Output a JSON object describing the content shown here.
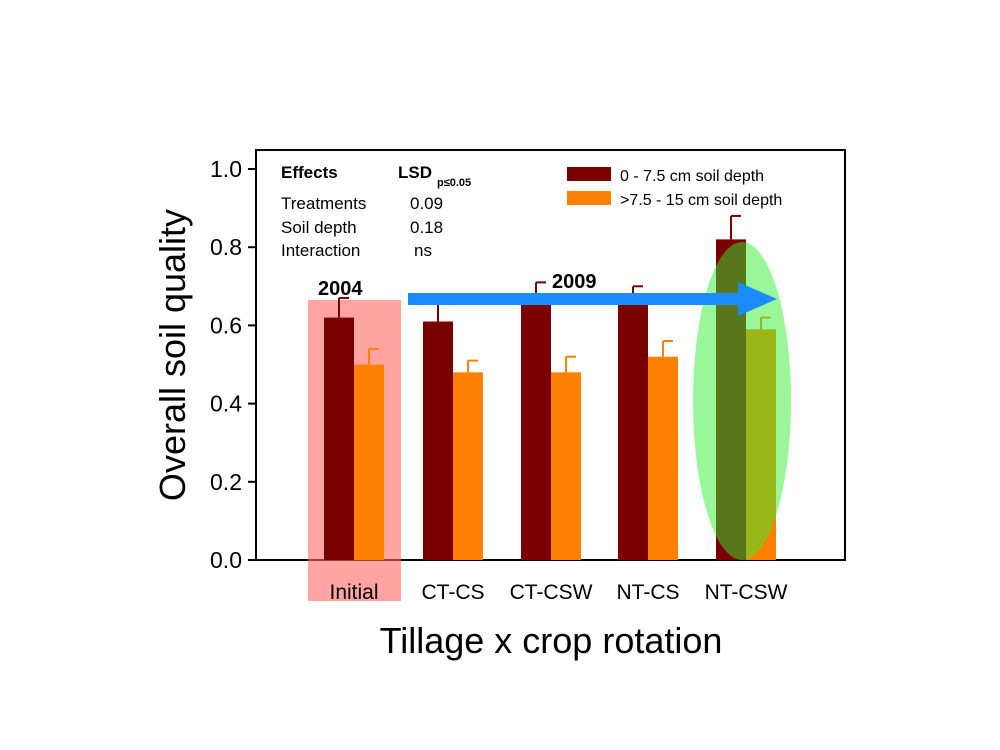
{
  "chart_data": {
    "type": "bar",
    "xlabel": "Tillage x crop rotation",
    "ylabel": "Overall soil quality",
    "ylim": [
      0,
      1.05
    ],
    "yticks": [
      "0.0",
      "0.2",
      "0.4",
      "0.6",
      "0.8",
      "1.0"
    ],
    "categories": [
      "Initial",
      "CT-CS",
      "CT-CSW",
      "NT-CS",
      "NT-CSW"
    ],
    "series": [
      {
        "name": "0 - 7.5 cm soil depth",
        "color": "#7a0000",
        "values": [
          0.62,
          0.61,
          0.66,
          0.66,
          0.82
        ],
        "errors": [
          0.05,
          0.05,
          0.05,
          0.04,
          0.06
        ]
      },
      {
        "name": ">7.5 - 15 cm soil depth",
        "color": "#ff8000",
        "values": [
          0.5,
          0.48,
          0.48,
          0.52,
          0.59
        ],
        "errors": [
          0.04,
          0.03,
          0.04,
          0.04,
          0.03
        ]
      }
    ],
    "legend_position": "top-right",
    "grid": false,
    "effects_table": {
      "header": [
        "Effects",
        "LSD",
        "p≤0.05"
      ],
      "rows": [
        [
          "Treatments",
          "0.09"
        ],
        [
          "Soil depth",
          "0.18"
        ],
        [
          "Interaction",
          "ns"
        ]
      ]
    },
    "annotations": {
      "year_start": "2004",
      "year_end": "2009",
      "highlight_initial_color": "#ff6666",
      "highlight_ntcsw_color": "#33ee33",
      "arrow_color": "#1a8cff"
    }
  }
}
